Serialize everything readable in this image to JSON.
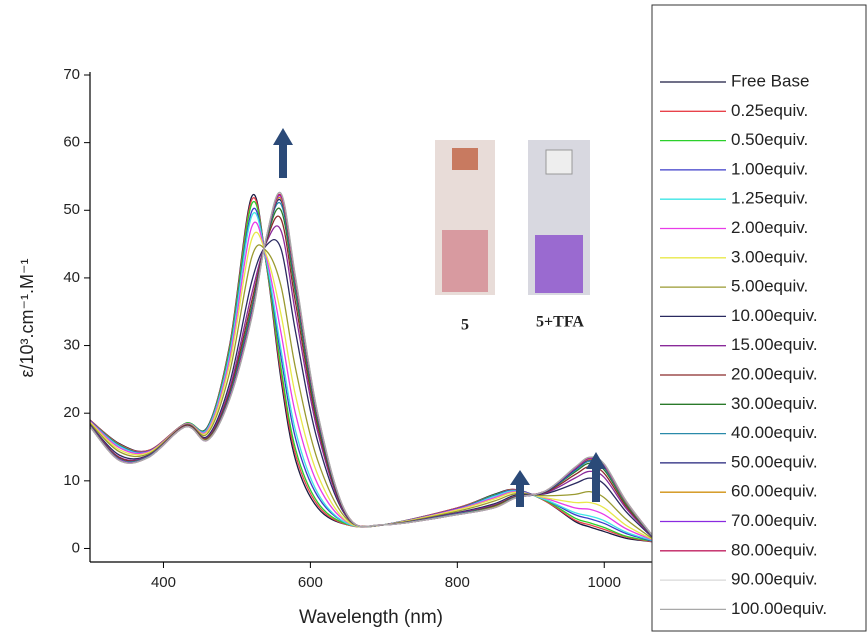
{
  "chart_data": {
    "type": "line",
    "xlabel": "Wavelength (nm)",
    "ylabel": "ε/10³.cm⁻¹.M⁻¹",
    "annotations": [
      "5",
      "5+TFA"
    ],
    "xlim": [
      300,
      1065
    ],
    "ylim": [
      -2,
      70
    ],
    "xticks": [
      400,
      600,
      800,
      1000
    ],
    "yticks": [
      0,
      10,
      20,
      30,
      40,
      50,
      60,
      70
    ],
    "x": [
      300,
      340,
      380,
      430,
      460,
      490,
      520,
      540,
      560,
      580,
      610,
      650,
      700,
      800,
      850,
      880,
      920,
      960,
      980,
      1000,
      1030,
      1065
    ],
    "series": [
      {
        "name": "Free Base",
        "color": "#1a1a40",
        "values": [
          19,
          15.5,
          14.5,
          18.5,
          18,
          30,
          52,
          42,
          25,
          13,
          6,
          3.5,
          3.5,
          6,
          8,
          8.7,
          7,
          4,
          3.2,
          2.5,
          1.5,
          1
        ]
      },
      {
        "name": "0.25equiv.",
        "color": "#e8424a",
        "values": [
          19.0,
          15.4,
          14.5,
          18.5,
          17.9,
          29.8,
          51.5,
          42.1,
          25.8,
          13.8,
          6.4,
          3.5,
          3.5,
          6.0,
          7.9,
          8.7,
          7.0,
          4.2,
          3.5,
          2.8,
          1.7,
          1.0
        ]
      },
      {
        "name": "0.50equiv.",
        "color": "#2bd02b",
        "values": [
          18.9,
          15.3,
          14.4,
          18.5,
          17.9,
          29.5,
          50.9,
          42.2,
          26.7,
          14.6,
          6.8,
          3.6,
          3.5,
          5.9,
          7.9,
          8.6,
          7.1,
          4.5,
          3.8,
          3.1,
          1.8,
          1.1
        ]
      },
      {
        "name": "1.00equiv.",
        "color": "#3c3cc8",
        "values": [
          18.9,
          15.2,
          14.4,
          18.4,
          17.8,
          29.0,
          49.8,
          42.5,
          28.3,
          16.2,
          7.7,
          3.7,
          3.5,
          5.9,
          7.8,
          8.6,
          7.2,
          5.0,
          4.4,
          3.7,
          2.2,
          1.1
        ]
      },
      {
        "name": "1.25equiv.",
        "color": "#3ee6e6",
        "values": [
          18.8,
          15.1,
          14.3,
          18.4,
          17.7,
          28.7,
          49.1,
          42.6,
          29.4,
          17.3,
          8.2,
          3.7,
          3.5,
          5.8,
          7.7,
          8.5,
          7.2,
          5.3,
          4.8,
          4.1,
          2.4,
          1.2
        ]
      },
      {
        "name": "2.00equiv.",
        "color": "#e83ce8",
        "values": [
          18.8,
          14.9,
          14.3,
          18.4,
          17.5,
          28.0,
          47.5,
          43.0,
          31.9,
          19.8,
          9.5,
          3.9,
          3.5,
          5.8,
          7.5,
          8.4,
          7.4,
          6.0,
          5.8,
          5.0,
          2.9,
          1.3
        ]
      },
      {
        "name": "3.00equiv.",
        "color": "#e8e84a",
        "values": [
          18.7,
          14.6,
          14.2,
          18.3,
          17.3,
          27.2,
          45.7,
          43.4,
          34.6,
          22.5,
          10.9,
          4.0,
          3.5,
          5.7,
          7.3,
          8.3,
          7.5,
          6.8,
          6.8,
          6.0,
          3.4,
          1.4
        ]
      },
      {
        "name": "5.00equiv.",
        "color": "#9a9a30",
        "values": [
          18.5,
          14.3,
          14.0,
          18.3,
          17.0,
          26.0,
          43.0,
          44.0,
          38.8,
          26.5,
          13.0,
          4.3,
          3.5,
          5.5,
          7.0,
          8.1,
          7.8,
          8.0,
          8.4,
          7.5,
          4.3,
          1.5
        ]
      },
      {
        "name": "10.00equiv.",
        "color": "#2a2a60",
        "values": [
          18.3,
          13.8,
          13.8,
          18.2,
          16.6,
          24.4,
          39.4,
          44.8,
          44.3,
          31.9,
          15.8,
          4.6,
          3.5,
          5.3,
          6.6,
          7.9,
          8.1,
          9.6,
          10.4,
          9.5,
          5.4,
          1.7
        ]
      },
      {
        "name": "15.00equiv.",
        "color": "#8a2a9a",
        "values": [
          18.2,
          13.5,
          13.7,
          18.1,
          16.4,
          23.6,
          37.6,
          45.2,
          47.0,
          34.6,
          17.2,
          4.7,
          3.5,
          5.2,
          6.4,
          7.7,
          8.2,
          10.4,
          11.4,
          10.5,
          5.9,
          1.8
        ]
      },
      {
        "name": "20.00equiv.",
        "color": "#8a2a2a",
        "values": [
          18.1,
          13.4,
          13.6,
          18.1,
          16.3,
          23.1,
          36.5,
          45.4,
          48.7,
          36.2,
          18.0,
          4.8,
          3.5,
          5.1,
          6.3,
          7.7,
          8.3,
          10.9,
          12.1,
          11.1,
          6.2,
          1.9
        ]
      },
      {
        "name": "30.00equiv.",
        "color": "#2a7a2a",
        "values": [
          18.1,
          13.2,
          13.6,
          18.0,
          16.2,
          22.7,
          35.6,
          45.6,
          50.0,
          37.6,
          18.7,
          4.9,
          3.5,
          5.1,
          6.2,
          7.6,
          8.4,
          11.3,
          12.6,
          11.6,
          6.5,
          1.9
        ]
      },
      {
        "name": "40.00equiv.",
        "color": "#2a8aaa",
        "values": [
          18.1,
          13.2,
          13.6,
          18.0,
          16.1,
          22.5,
          35.1,
          45.8,
          50.9,
          38.4,
          19.2,
          4.9,
          3.5,
          5.1,
          6.1,
          7.6,
          8.4,
          11.5,
          12.9,
          11.9,
          6.7,
          1.9
        ]
      },
      {
        "name": "50.00equiv.",
        "color": "#20207a",
        "values": [
          18.0,
          13.1,
          13.5,
          18.0,
          16.1,
          22.3,
          34.7,
          45.8,
          51.4,
          38.9,
          19.4,
          4.9,
          3.5,
          5.0,
          6.1,
          7.5,
          8.4,
          11.7,
          13.1,
          12.1,
          6.8,
          2.0
        ]
      },
      {
        "name": "60.00equiv.",
        "color": "#d09010",
        "values": [
          18.0,
          13.1,
          13.5,
          18.0,
          16.1,
          22.2,
          34.5,
          45.9,
          51.7,
          39.2,
          19.6,
          5.0,
          3.5,
          5.0,
          6.1,
          7.5,
          8.5,
          11.8,
          13.2,
          12.2,
          6.8,
          2.0
        ]
      },
      {
        "name": "70.00equiv.",
        "color": "#8a2ae0",
        "values": [
          18.0,
          13.1,
          13.5,
          18.0,
          16.0,
          22.2,
          34.4,
          45.9,
          52.0,
          39.5,
          19.7,
          5.0,
          3.5,
          5.0,
          6.0,
          7.5,
          8.5,
          11.8,
          13.3,
          12.3,
          6.9,
          2.0
        ]
      },
      {
        "name": "80.00equiv.",
        "color": "#c02060",
        "values": [
          18.0,
          13.0,
          13.5,
          18.0,
          16.0,
          22.1,
          34.2,
          46.0,
          52.2,
          39.7,
          19.9,
          5.0,
          3.5,
          5.0,
          6.0,
          7.5,
          8.5,
          11.9,
          13.4,
          12.4,
          7.0,
          2.0
        ]
      },
      {
        "name": "90.00equiv.",
        "color": "#d8d8d8",
        "values": [
          18,
          13,
          13.5,
          18,
          16,
          22,
          34,
          46,
          52.5,
          40,
          20,
          5,
          3.5,
          5,
          6,
          7.5,
          8.5,
          12,
          13.5,
          12.5,
          7,
          2
        ]
      },
      {
        "name": "100.00equiv.",
        "color": "#a8a8a8",
        "values": [
          18,
          13,
          13.5,
          18,
          16,
          22,
          34,
          46,
          52.5,
          40,
          20,
          5,
          3.5,
          5,
          6,
          7.5,
          8.5,
          12,
          13.5,
          12.5,
          7,
          2
        ]
      }
    ]
  }
}
